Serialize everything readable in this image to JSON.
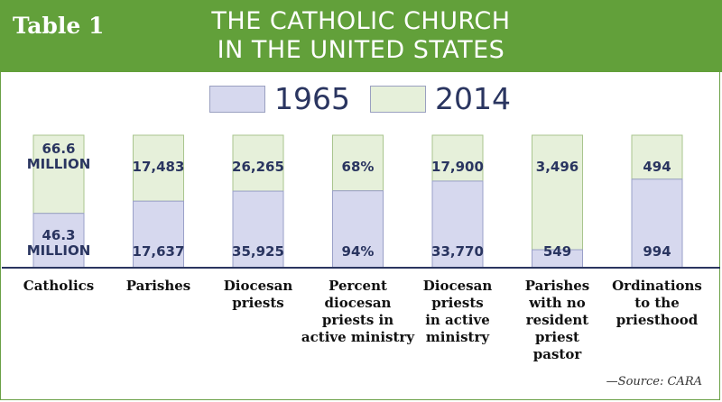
{
  "header": {
    "table_label": "Table 1",
    "title_line1": "THE CATHOLIC CHURCH",
    "title_line2": "IN THE UNITED STATES"
  },
  "source": "—Source: CARA",
  "colors": {
    "banner": "#62a03a",
    "series_1965": "#d6d8ee",
    "series_2014": "#e6f0da",
    "text_dark": "#2a3560"
  },
  "chart_data": {
    "type": "bar",
    "stacked": true,
    "categories": [
      [
        "Catholics"
      ],
      [
        "Parishes"
      ],
      [
        "Diocesan",
        "priests"
      ],
      [
        "Percent",
        "diocesan",
        "priests in",
        "active ministry"
      ],
      [
        "Diocesan",
        "priests",
        "in active",
        "ministry"
      ],
      [
        "Parishes",
        "with no",
        "resident",
        "priest",
        "pastor"
      ],
      [
        "Ordinations",
        "to the",
        "priesthood"
      ]
    ],
    "series": [
      {
        "name": "1965",
        "labels": [
          [
            "46.3",
            "MILLION"
          ],
          [
            "17,637"
          ],
          [
            "35,925"
          ],
          [
            "94%"
          ],
          [
            "33,770"
          ],
          [
            "549"
          ],
          [
            "994"
          ]
        ],
        "values": [
          46.3,
          17637,
          35925,
          94,
          33770,
          549,
          994
        ]
      },
      {
        "name": "2014",
        "labels": [
          [
            "66.6",
            "MILLION"
          ],
          [
            "17,483"
          ],
          [
            "26,265"
          ],
          [
            "68%"
          ],
          [
            "17,900"
          ],
          [
            "3,496"
          ],
          [
            "494"
          ]
        ],
        "values": [
          66.6,
          17483,
          26265,
          68,
          17900,
          3496,
          494
        ]
      }
    ],
    "legend": "top-center"
  }
}
